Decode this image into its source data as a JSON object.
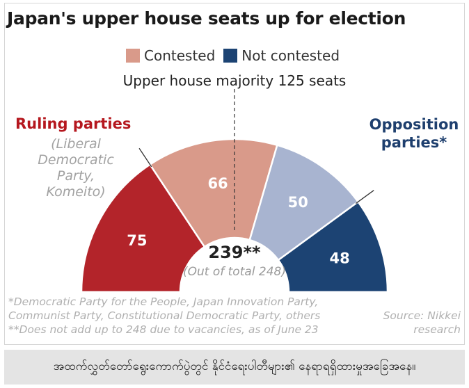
{
  "chart_data": {
    "type": "pie",
    "title": "Japan's upper house seats up for election",
    "legend": [
      {
        "label": "Contested",
        "color": "#d99a8a"
      },
      {
        "label": "Not contested",
        "color": "#1c4373"
      }
    ],
    "annotation": "Upper house majority 125 seats",
    "categories": [
      "Ruling parties – Not contested",
      "Ruling parties – Contested",
      "Opposition parties – Contested",
      "Opposition parties – Not contested"
    ],
    "values": [
      75,
      66,
      50,
      48
    ],
    "colors": [
      "#b3242a",
      "#d99a8a",
      "#a8b4d0",
      "#1c4373"
    ],
    "total_label": "239**",
    "total_sub": "(Out of total 248)",
    "ruling_title": "Ruling parties",
    "ruling_sub": "(Liberal\nDemocratic\nParty,\nKomeito)",
    "opposition_title": "Opposition\nparties*",
    "footnotes": "*Democratic Party for the People, Japan Innovation Party,\nCommunist Party, Constitutional Democratic Party, others\n**Does not add up to 248 due to vacancies, as of June 23",
    "source": "Source: Nikkei\nresearch"
  },
  "caption": "အထက်လွှတ်တော်ရွေးကောက်ပွဲတွင် နိုင်ငံရေးပါတီများ၏ နေရာရရှိထားမှုအခြေအနေ။"
}
